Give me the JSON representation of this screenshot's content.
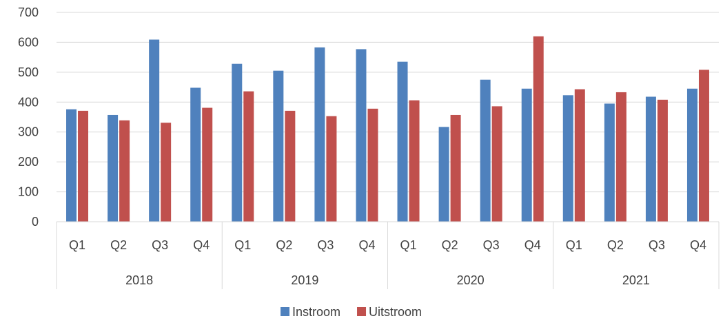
{
  "chart_data": {
    "type": "bar",
    "title": "",
    "xlabel": "",
    "ylabel": "",
    "ylim": [
      0,
      700
    ],
    "yticks": [
      0,
      100,
      200,
      300,
      400,
      500,
      600,
      700
    ],
    "grid": true,
    "legend_position": "bottom",
    "groups": [
      {
        "label": "2018",
        "categories": [
          "Q1",
          "Q2",
          "Q3",
          "Q4"
        ]
      },
      {
        "label": "2019",
        "categories": [
          "Q1",
          "Q2",
          "Q3",
          "Q4"
        ]
      },
      {
        "label": "2020",
        "categories": [
          "Q1",
          "Q2",
          "Q3",
          "Q4"
        ]
      },
      {
        "label": "2021",
        "categories": [
          "Q1",
          "Q2",
          "Q3",
          "Q4"
        ]
      }
    ],
    "series": [
      {
        "name": "Instroom",
        "color": "#4f81bd",
        "values": [
          376,
          357,
          609,
          448,
          528,
          505,
          583,
          577,
          535,
          317,
          475,
          445,
          423,
          395,
          418,
          445
        ]
      },
      {
        "name": "Uitstroom",
        "color": "#c0504d",
        "values": [
          371,
          339,
          331,
          381,
          436,
          371,
          353,
          378,
          406,
          357,
          386,
          620,
          443,
          433,
          408,
          508
        ]
      }
    ]
  }
}
